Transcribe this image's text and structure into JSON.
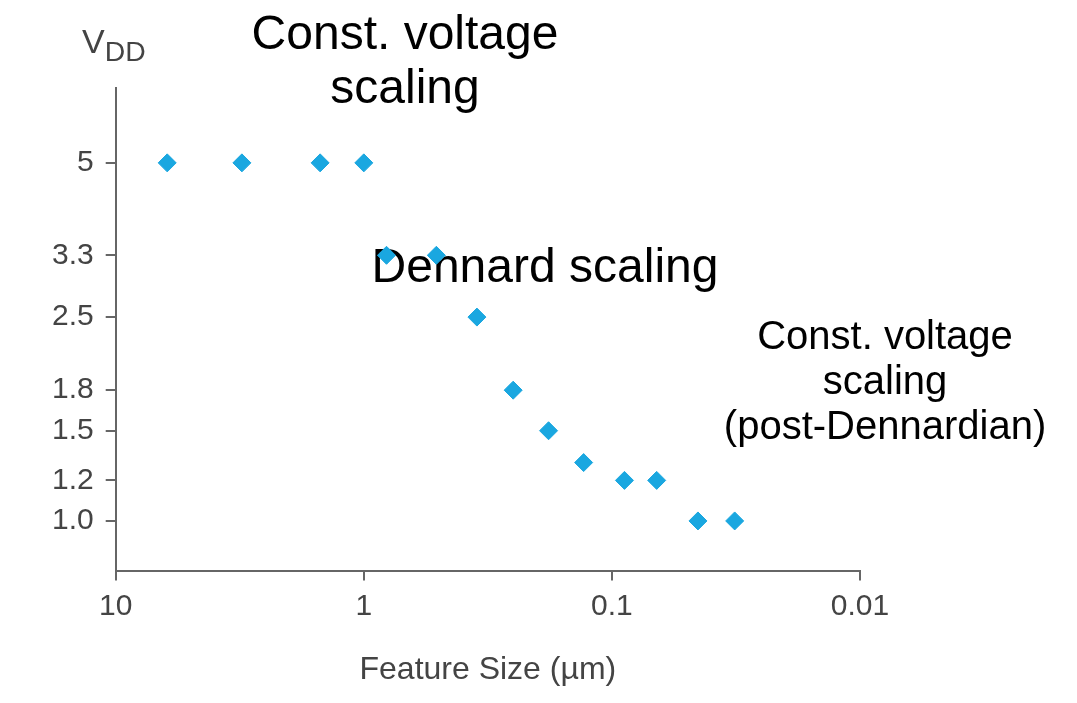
{
  "chart_data": {
    "type": "scatter",
    "xlabel": "Feature Size (µm)",
    "ylabel": "V$_{DD}$",
    "x": [
      6.2,
      3.1,
      1.5,
      1.0,
      0.81,
      0.51,
      0.35,
      0.25,
      0.18,
      0.13,
      0.089,
      0.066,
      0.045,
      0.032
    ],
    "series": [
      {
        "color": "#1aa7e0",
        "values": [
          5,
          5,
          5,
          5,
          3.3,
          3.3,
          2.5,
          1.8,
          1.5,
          1.3,
          1.2,
          1.2,
          1.0,
          1.0
        ]
      }
    ],
    "marker": "diamond",
    "log": "xy",
    "xlim": [
      10,
      0.01
    ],
    "xticks": [
      10,
      1,
      0.1,
      0.01
    ],
    "ylim": [
      0.8,
      7
    ],
    "yticks": [
      {
        "value": 1,
        "label": "1.0"
      },
      1.2,
      1.5,
      1.8,
      2.5,
      3.3,
      5
    ],
    "grid": false,
    "legend": false,
    "annotations": [
      "Const. voltage scaling",
      "Dennard scaling",
      "Const. voltage scaling (post-Dennardian)"
    ]
  }
}
